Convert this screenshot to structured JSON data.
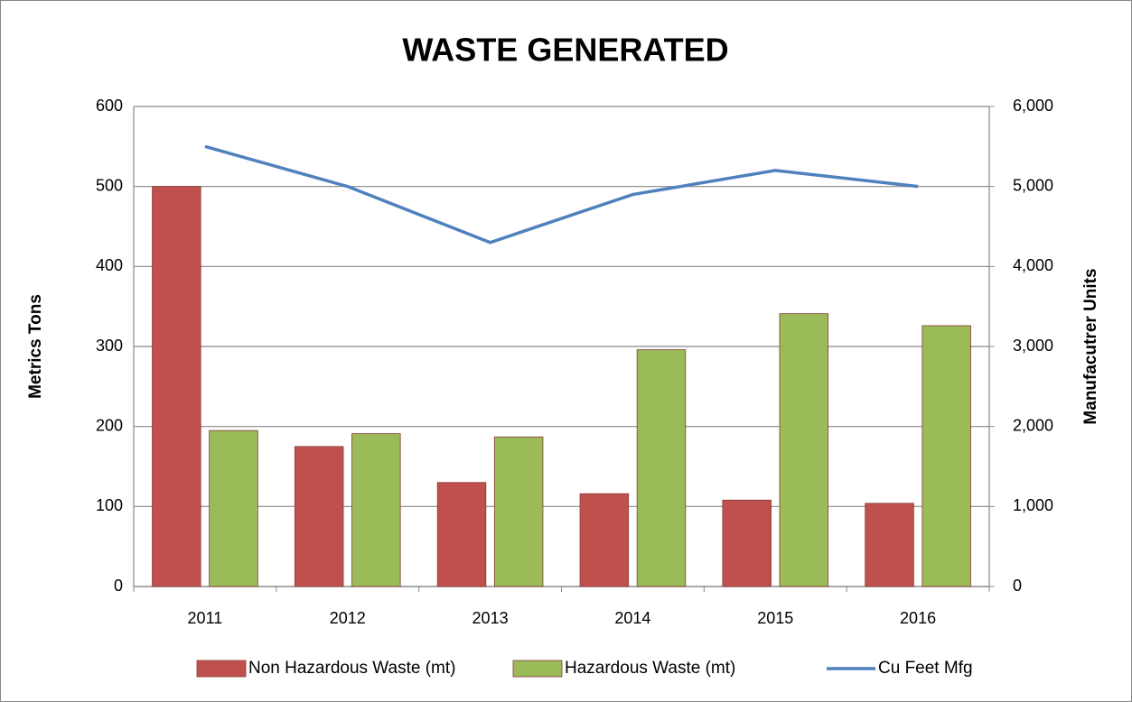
{
  "chart_data": {
    "type": "bar",
    "title": "WASTE GENERATED",
    "y_label": "Metrics Tons",
    "y2_label": "Manufacutrer Units",
    "categories": [
      "2011",
      "2012",
      "2013",
      "2014",
      "2015",
      "2016"
    ],
    "series": [
      {
        "name": "Non Hazardous Waste (mt)",
        "type": "bar",
        "color": "#c0504d",
        "values": [
          500,
          175,
          130,
          116,
          108,
          104
        ]
      },
      {
        "name": "Hazardous Waste (mt)",
        "type": "bar",
        "color": "#9bbb59",
        "values": [
          195,
          191,
          187,
          296,
          341,
          326
        ]
      },
      {
        "name": "Cu Feet Mfg",
        "type": "line",
        "axis": "y2",
        "color": "#4f81bd",
        "values": [
          5500,
          5000,
          4300,
          4900,
          5200,
          5000
        ]
      }
    ],
    "ylim": [
      0,
      600
    ],
    "yticks": [
      0,
      100,
      200,
      300,
      400,
      500,
      600
    ],
    "y2lim": [
      0,
      6000
    ],
    "y2ticks": [
      0,
      {
        "value": 1000,
        "label": "1,000"
      },
      {
        "value": 2000,
        "label": "2,000"
      },
      {
        "value": 3000,
        "label": "3,000"
      },
      {
        "value": 4000,
        "label": "4,000"
      },
      {
        "value": 5000,
        "label": "5,000"
      },
      {
        "value": 6000,
        "label": "6,000"
      }
    ],
    "grid": true,
    "legend": "bottom"
  }
}
